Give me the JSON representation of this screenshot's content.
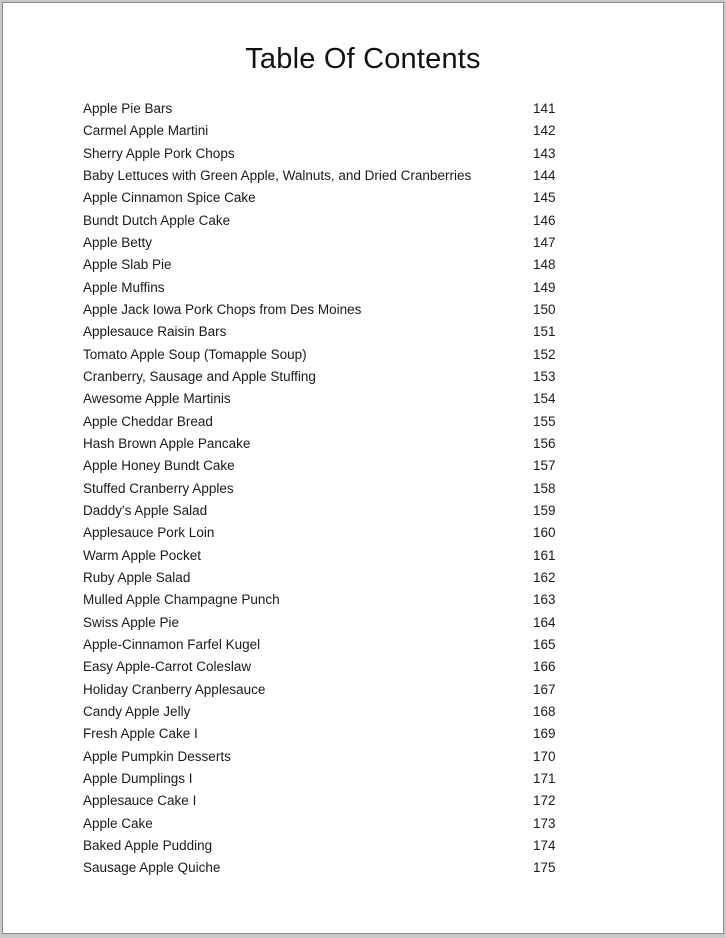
{
  "document": {
    "title": "Table Of Contents"
  },
  "toc": {
    "entries": [
      {
        "label": "Apple Pie Bars",
        "page": "141"
      },
      {
        "label": "Carmel Apple Martini",
        "page": "142"
      },
      {
        "label": "Sherry Apple Pork Chops",
        "page": "143"
      },
      {
        "label": "Baby Lettuces with Green Apple, Walnuts, and Dried Cranberries",
        "page": "144"
      },
      {
        "label": "Apple Cinnamon Spice Cake",
        "page": "145"
      },
      {
        "label": "Bundt Dutch Apple Cake",
        "page": "146"
      },
      {
        "label": "Apple Betty",
        "page": "147"
      },
      {
        "label": "Apple Slab Pie",
        "page": "148"
      },
      {
        "label": "Apple Muffins",
        "page": "149"
      },
      {
        "label": "Apple Jack Iowa Pork Chops from Des Moines",
        "page": "150"
      },
      {
        "label": "Applesauce Raisin Bars",
        "page": "151"
      },
      {
        "label": "Tomato Apple Soup (Tomapple Soup)",
        "page": "152"
      },
      {
        "label": "Cranberry, Sausage and Apple Stuffing",
        "page": "153"
      },
      {
        "label": "Awesome Apple Martinis",
        "page": "154"
      },
      {
        "label": "Apple Cheddar Bread",
        "page": "155"
      },
      {
        "label": "Hash Brown Apple Pancake",
        "page": "156"
      },
      {
        "label": "Apple Honey Bundt Cake",
        "page": "157"
      },
      {
        "label": "Stuffed Cranberry Apples",
        "page": "158"
      },
      {
        "label": "Daddy's Apple Salad",
        "page": "159"
      },
      {
        "label": "Applesauce Pork Loin",
        "page": "160"
      },
      {
        "label": "Warm Apple Pocket",
        "page": "161"
      },
      {
        "label": "Ruby Apple Salad",
        "page": "162"
      },
      {
        "label": "Mulled Apple Champagne Punch",
        "page": "163"
      },
      {
        "label": "Swiss Apple Pie",
        "page": "164"
      },
      {
        "label": "Apple-Cinnamon Farfel Kugel",
        "page": "165"
      },
      {
        "label": "Easy Apple-Carrot Coleslaw",
        "page": "166"
      },
      {
        "label": "Holiday Cranberry Applesauce",
        "page": "167"
      },
      {
        "label": "Candy Apple Jelly",
        "page": "168"
      },
      {
        "label": "Fresh Apple Cake I",
        "page": "169"
      },
      {
        "label": "Apple Pumpkin Desserts",
        "page": "170"
      },
      {
        "label": "Apple Dumplings I",
        "page": "171"
      },
      {
        "label": "Applesauce Cake I",
        "page": "172"
      },
      {
        "label": "Apple Cake",
        "page": "173"
      },
      {
        "label": "Baked Apple Pudding",
        "page": "174"
      },
      {
        "label": "Sausage Apple Quiche",
        "page": "175"
      }
    ]
  }
}
